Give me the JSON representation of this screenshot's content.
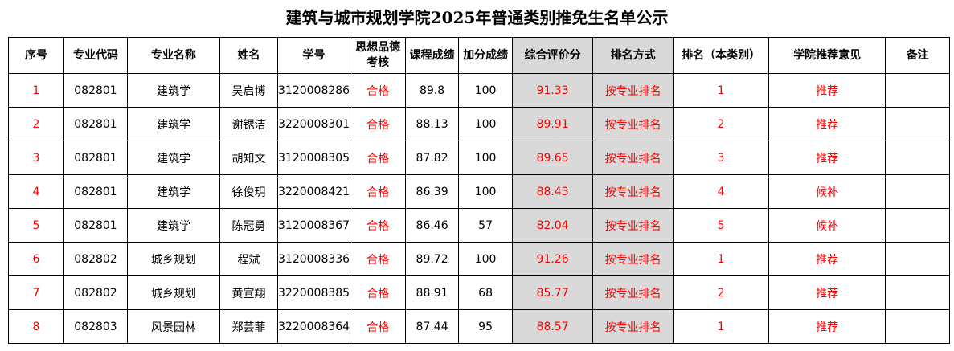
{
  "title": "建筑与城市规划学院2025年普通类别推免生名单公示",
  "headers": [
    "序号",
    "专业代码",
    "专业名称",
    "姓名",
    "学号",
    "思想品德考核",
    "课程成绩",
    "加分成绩",
    "综合评价分",
    "排名方式",
    "排名（本类别）",
    "学院推荐意见",
    "备注"
  ],
  "rows": [
    [
      "1",
      "082801",
      "建筑学",
      "吴启博",
      "3120008286",
      "合格",
      "89.8",
      "100",
      "91.33",
      "按专业排名",
      "1",
      "推荐",
      ""
    ],
    [
      "2",
      "082801",
      "建筑学",
      "谢锶洁",
      "3220008301",
      "合格",
      "88.13",
      "100",
      "89.91",
      "按专业排名",
      "2",
      "推荐",
      ""
    ],
    [
      "3",
      "082801",
      "建筑学",
      "胡知文",
      "3120008305",
      "合格",
      "87.82",
      "100",
      "89.65",
      "按专业排名",
      "3",
      "推荐",
      ""
    ],
    [
      "4",
      "082801",
      "建筑学",
      "徐俊玥",
      "3220008421",
      "合格",
      "86.39",
      "100",
      "88.43",
      "按专业排名",
      "4",
      "候补",
      ""
    ],
    [
      "5",
      "082801",
      "建筑学",
      "陈冠勇",
      "3120008367",
      "合格",
      "86.46",
      "57",
      "82.04",
      "按专业排名",
      "5",
      "候补",
      ""
    ],
    [
      "6",
      "082802",
      "城乡规划",
      "程斌",
      "3120008336",
      "合格",
      "89.72",
      "100",
      "91.26",
      "按专业排名",
      "1",
      "推荐",
      ""
    ],
    [
      "7",
      "082802",
      "城乡规划",
      "黄宣翔",
      "3220008385",
      "合格",
      "88.91",
      "68",
      "85.77",
      "按专业排名",
      "2",
      "推荐",
      ""
    ],
    [
      "8",
      "082803",
      "风景园林",
      "郑芸菲",
      "3220008364",
      "合格",
      "87.44",
      "95",
      "88.57",
      "按专业排名",
      "1",
      "推荐",
      ""
    ]
  ],
  "colors": {
    "highlight_text": "#ff0000",
    "highlight_fill": "#d9d9d9"
  }
}
